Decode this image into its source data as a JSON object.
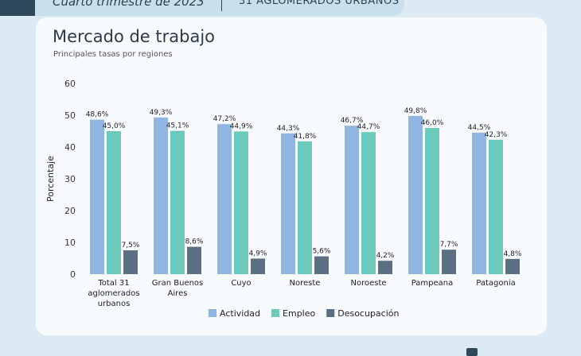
{
  "header": {
    "period": "Cuarto trimestre de 2023",
    "scope": "31 AGLOMERADOS URBANOS"
  },
  "title": "Mercado de trabajo",
  "subtitle": "Principales tasas por regiones",
  "chart_data": {
    "type": "bar",
    "title": "Mercado de trabajo",
    "subtitle": "Principales tasas por regiones",
    "xlabel": "",
    "ylabel": "Porcentaje",
    "ylim": [
      0,
      60
    ],
    "yticks": [
      0,
      10,
      20,
      30,
      40,
      50,
      60
    ],
    "grid": false,
    "legend": "bottom",
    "categories": [
      [
        "Total 31",
        "aglomerados",
        "urbanos"
      ],
      [
        "Gran Buenos",
        "Aires"
      ],
      [
        "Cuyo"
      ],
      [
        "Noreste"
      ],
      [
        "Noroeste"
      ],
      [
        "Pampeana"
      ],
      [
        "Patagonia"
      ]
    ],
    "series": [
      {
        "name": "Actividad",
        "color": "#8fb5e0",
        "values": [
          48.6,
          49.3,
          47.2,
          44.3,
          46.7,
          49.8,
          44.5
        ],
        "labels": [
          "48,6%",
          "49,3%",
          "47,2%",
          "44,3%",
          "46,7%",
          "49,8%",
          "44,5%"
        ]
      },
      {
        "name": "Empleo",
        "color": "#6ccabd",
        "values": [
          45.0,
          45.1,
          44.9,
          41.8,
          44.7,
          46.0,
          42.3
        ],
        "labels": [
          "45,0%",
          "45,1%",
          "44,9%",
          "41,8%",
          "44,7%",
          "46,0%",
          "42,3%"
        ]
      },
      {
        "name": "Desocupación",
        "color": "#5a6f82",
        "values": [
          7.5,
          8.6,
          4.9,
          5.6,
          4.2,
          7.7,
          4.8
        ],
        "labels": [
          "7,5%",
          "8,6%",
          "4,9%",
          "5,6%",
          "4,2%",
          "7,7%",
          "4,8%"
        ]
      }
    ]
  }
}
